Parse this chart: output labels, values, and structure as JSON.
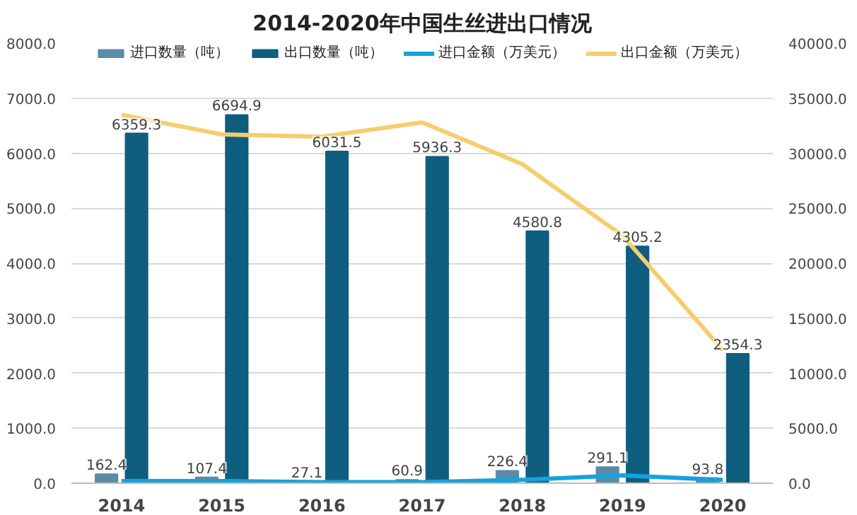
{
  "chart_data": {
    "type": "bar",
    "title": "2014-2020年中国生丝进出口情况",
    "categories": [
      "2014",
      "2015",
      "2016",
      "2017",
      "2018",
      "2019",
      "2020"
    ],
    "series": [
      {
        "name": "进口数量（吨）",
        "color": "#5b8ba6",
        "values": [
          162.4,
          107.4,
          27.1,
          60.9,
          226.4,
          291.1,
          93.8
        ],
        "value_labels": [
          "162.4",
          "107.4",
          "27.1",
          "60.9",
          "226.4",
          "291.1",
          "93.8"
        ]
      },
      {
        "name": "出口数量（吨）",
        "color": "#0f5e80",
        "values": [
          6359.3,
          6694.9,
          6031.5,
          5936.3,
          4580.8,
          4305.2,
          2354.3
        ],
        "value_labels": [
          "6359.3",
          "6694.9",
          "6031.5",
          "5936.3",
          "4580.8",
          "4305.2",
          "2354.3"
        ]
      },
      {
        "name": "进口金额（万美元）",
        "color": "#14a3dc",
        "type": "line",
        "axis": "y2",
        "values": [
          200,
          200,
          100,
          100,
          300,
          700,
          300
        ]
      },
      {
        "name": "出口金额（万美元）",
        "color": "#f6cd6e",
        "type": "line",
        "axis": "y2",
        "values": [
          33500,
          31700,
          31500,
          32800,
          29000,
          22500,
          12100
        ]
      }
    ],
    "ylim": [
      0,
      8000
    ],
    "yticks": [
      {
        "value": 0,
        "label": "0.0"
      },
      {
        "value": 1000,
        "label": "1000.0"
      },
      {
        "value": 2000,
        "label": "2000.0"
      },
      {
        "value": 3000,
        "label": "3000.0"
      },
      {
        "value": 4000,
        "label": "4000.0"
      },
      {
        "value": 5000,
        "label": "5000.0"
      },
      {
        "value": 6000,
        "label": "6000.0"
      },
      {
        "value": 7000,
        "label": "7000.0"
      },
      {
        "value": 8000,
        "label": "8000.0"
      }
    ],
    "y2lim": [
      0,
      40000
    ],
    "y2ticks": [
      {
        "value": 0,
        "label": "0.0"
      },
      {
        "value": 5000,
        "label": "5000.0"
      },
      {
        "value": 10000,
        "label": "10000.0"
      },
      {
        "value": 15000,
        "label": "15000.0"
      },
      {
        "value": 20000,
        "label": "20000.0"
      },
      {
        "value": 25000,
        "label": "25000.0"
      },
      {
        "value": 30000,
        "label": "30000.0"
      },
      {
        "value": 35000,
        "label": "35000.0"
      },
      {
        "value": 40000,
        "label": "40000.0"
      }
    ],
    "grid": "y",
    "legend": "top"
  }
}
